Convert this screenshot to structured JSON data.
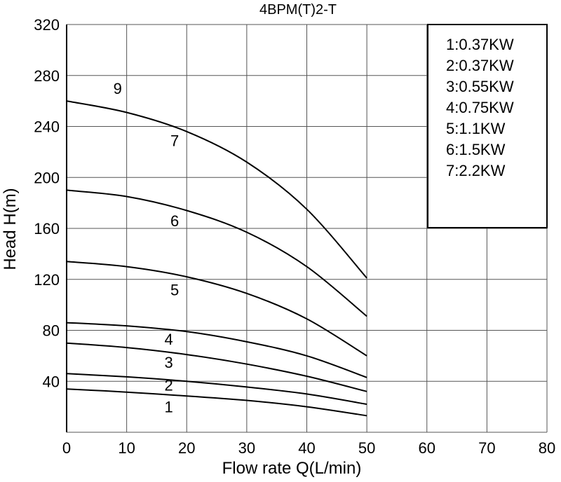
{
  "chart_data": {
    "type": "line",
    "title": "4BPM(T)2-T",
    "xlabel": "Flow rate Q(L/min)",
    "ylabel": "Head H(m)",
    "xlim": [
      0,
      80
    ],
    "ylim": [
      0,
      320
    ],
    "x_ticks": [
      0,
      10,
      20,
      30,
      40,
      50,
      60,
      70,
      80
    ],
    "y_ticks": [
      40,
      80,
      120,
      160,
      200,
      240,
      280,
      320
    ],
    "grid": true,
    "legend_position": "top-right",
    "legend": [
      "1:0.37KW",
      "2:0.37KW",
      "3:0.55KW",
      "4:0.75KW",
      "5:1.1KW",
      "6:1.5KW",
      "7:2.2KW"
    ],
    "series": [
      {
        "name": "1",
        "x": [
          0,
          10,
          20,
          30,
          40,
          50
        ],
        "y": [
          34,
          31.5,
          28.5,
          25,
          20,
          13
        ],
        "label_at": [
          17,
          20
        ]
      },
      {
        "name": "2",
        "x": [
          0,
          10,
          20,
          30,
          40,
          50
        ],
        "y": [
          46,
          43.5,
          40,
          35.5,
          30,
          22
        ],
        "label_at": [
          17,
          37
        ]
      },
      {
        "name": "3",
        "x": [
          0,
          10,
          20,
          30,
          40,
          50
        ],
        "y": [
          70,
          66.5,
          61,
          53.5,
          44,
          32
        ],
        "label_at": [
          17,
          55
        ]
      },
      {
        "name": "4",
        "x": [
          0,
          10,
          20,
          30,
          40,
          50
        ],
        "y": [
          86,
          83.5,
          79,
          71,
          60,
          43
        ],
        "label_at": [
          17,
          73
        ]
      },
      {
        "name": "5",
        "x": [
          0,
          10,
          20,
          30,
          40,
          50
        ],
        "y": [
          134,
          130,
          122,
          109,
          89,
          60
        ],
        "label_at": [
          18,
          112
        ]
      },
      {
        "name": "6",
        "x": [
          0,
          10,
          20,
          30,
          40,
          50
        ],
        "y": [
          190,
          185,
          174,
          157,
          130,
          91
        ],
        "label_at": [
          18,
          166
        ]
      },
      {
        "name": "7",
        "x": [
          0,
          10,
          20,
          30,
          40,
          50
        ],
        "y": [
          260,
          251,
          236,
          212,
          175,
          121
        ],
        "label_at": [
          18,
          229
        ]
      }
    ],
    "annotations": [
      {
        "text": "9",
        "x": 8.5,
        "y": 270
      }
    ]
  }
}
